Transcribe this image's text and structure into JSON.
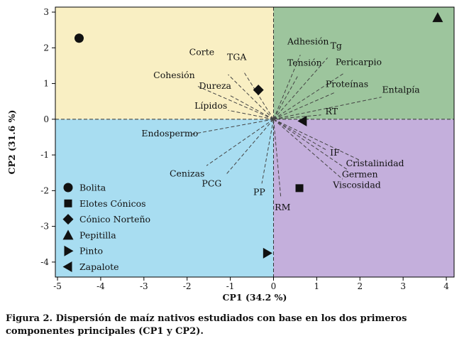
{
  "figure": {
    "caption": "Figura 2. Dispersión de maíz nativos estudiados con base en los dos primeros componentes principales (CP1 y CP2)."
  },
  "chart_data": {
    "type": "scatter",
    "subtype": "pca-biplot",
    "xlabel": "CP1 (34.2 %)",
    "ylabel": "CP2 (31.6 %)",
    "xlim": [
      -5.05,
      4.18
    ],
    "ylim": [
      -4.42,
      3.14
    ],
    "xticks": [
      -5,
      -4,
      -3,
      -2,
      -1,
      0,
      1,
      2,
      3,
      4
    ],
    "yticks": [
      -4,
      -3,
      -2,
      -1,
      0,
      1,
      2,
      3
    ],
    "grid": false,
    "legend_position": "bottom-left",
    "quadrant_colors": {
      "top_left": "#f9efc3",
      "top_right": "#9dc59d",
      "bottom_left": "#a8ddf1",
      "bottom_right": "#c4afdc"
    },
    "marker_color": "#111111",
    "samples": [
      {
        "name": "Bolita",
        "marker": "circle",
        "x": -4.5,
        "y": 2.27
      },
      {
        "name": "Elotes Cónicos",
        "marker": "square",
        "x": 0.6,
        "y": -1.93
      },
      {
        "name": "Cónico Norteño",
        "marker": "diamond",
        "x": -0.35,
        "y": 0.82
      },
      {
        "name": "Pepitilla",
        "marker": "triangle-up",
        "x": 3.8,
        "y": 2.85
      },
      {
        "name": "Pinto",
        "marker": "triangle-right",
        "x": -0.15,
        "y": -3.75
      },
      {
        "name": "Zapalote",
        "marker": "triangle-left",
        "x": 0.68,
        "y": -0.05
      }
    ],
    "vectors": [
      {
        "name": "Corte",
        "vx": -1.05,
        "vy": 1.25,
        "lx": -1.66,
        "ly": 1.8,
        "anchor": "middle"
      },
      {
        "name": "TGA",
        "vx": -0.7,
        "vy": 1.35,
        "lx": -0.85,
        "ly": 1.66,
        "anchor": "middle"
      },
      {
        "name": "Cohesión",
        "vx": -1.75,
        "vy": 0.92,
        "lx": -2.3,
        "ly": 1.15,
        "anchor": "middle"
      },
      {
        "name": "Dureza",
        "vx": -1.0,
        "vy": 0.66,
        "lx": -1.35,
        "ly": 0.85,
        "anchor": "middle"
      },
      {
        "name": "Lípidos",
        "vx": -1.05,
        "vy": 0.25,
        "lx": -1.45,
        "ly": 0.3,
        "anchor": "middle"
      },
      {
        "name": "Endospermo",
        "vx": -1.9,
        "vy": -0.42,
        "lx": -2.4,
        "ly": -0.48,
        "anchor": "middle"
      },
      {
        "name": "Cenizas",
        "vx": -1.55,
        "vy": -1.3,
        "lx": -2.0,
        "ly": -1.6,
        "anchor": "middle"
      },
      {
        "name": "PCG",
        "vx": -1.1,
        "vy": -1.55,
        "lx": -1.43,
        "ly": -1.88,
        "anchor": "middle"
      },
      {
        "name": "PP",
        "vx": -0.27,
        "vy": -1.8,
        "lx": -0.33,
        "ly": -2.12,
        "anchor": "middle"
      },
      {
        "name": "RM",
        "vx": 0.17,
        "vy": -2.2,
        "lx": 0.21,
        "ly": -2.55,
        "anchor": "middle"
      },
      {
        "name": "Adhesión",
        "vx": 0.62,
        "vy": 1.8,
        "lx": 0.8,
        "ly": 2.1,
        "anchor": "middle"
      },
      {
        "name": "Tg",
        "vx": 1.25,
        "vy": 1.72,
        "lx": 1.45,
        "ly": 1.98,
        "anchor": "middle"
      },
      {
        "name": "Tensión",
        "vx": 0.58,
        "vy": 1.25,
        "lx": 0.72,
        "ly": 1.5,
        "anchor": "middle"
      },
      {
        "name": "Pericarpio",
        "vx": 1.62,
        "vy": 1.28,
        "lx": 1.97,
        "ly": 1.52,
        "anchor": "middle"
      },
      {
        "name": "Proteínas",
        "vx": 1.42,
        "vy": 0.75,
        "lx": 1.7,
        "ly": 0.9,
        "anchor": "middle"
      },
      {
        "name": "Entalpía",
        "vx": 2.5,
        "vy": 0.62,
        "lx": 2.95,
        "ly": 0.74,
        "anchor": "middle"
      },
      {
        "name": "RT",
        "vx": 1.1,
        "vy": 0.12,
        "lx": 1.2,
        "ly": 0.14,
        "anchor": "start"
      },
      {
        "name": "IF",
        "vx": 1.25,
        "vy": -0.88,
        "lx": 1.42,
        "ly": -1.02,
        "anchor": "middle"
      },
      {
        "name": "Cristalinidad",
        "vx": 2.0,
        "vy": -1.15,
        "lx": 2.35,
        "ly": -1.32,
        "anchor": "middle"
      },
      {
        "name": "Germen",
        "vx": 1.72,
        "vy": -1.42,
        "lx": 2.0,
        "ly": -1.62,
        "anchor": "middle"
      },
      {
        "name": "Viscosidad",
        "vx": 1.6,
        "vy": -1.68,
        "lx": 1.93,
        "ly": -1.92,
        "anchor": "middle"
      }
    ]
  }
}
